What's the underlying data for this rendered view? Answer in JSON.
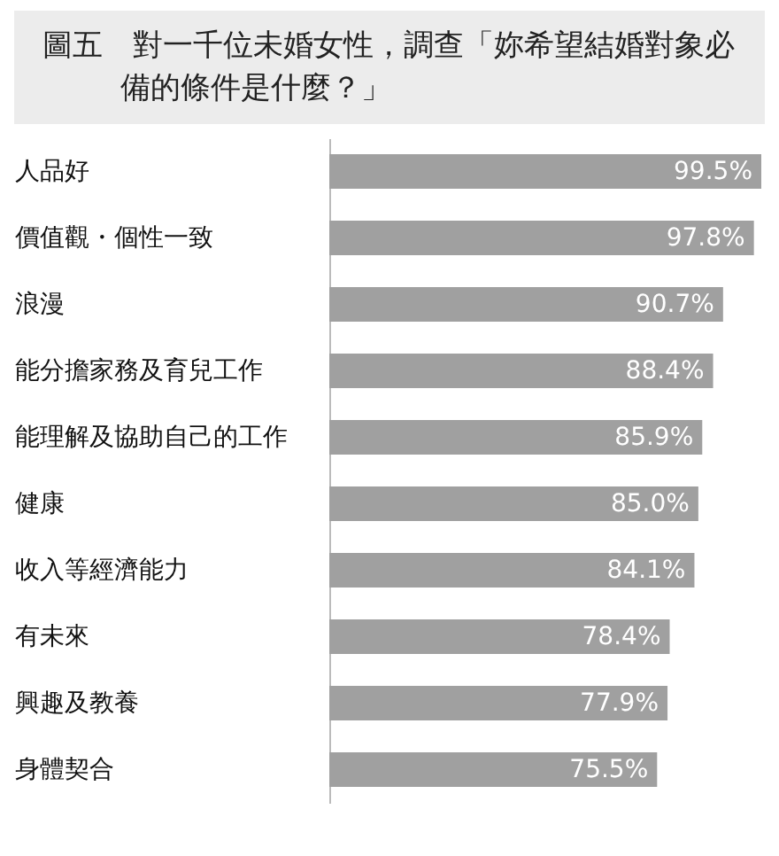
{
  "chart_data": {
    "type": "bar",
    "orientation": "horizontal",
    "title": "圖五　對一千位未婚女性，調查「妳希望結婚對象必備的條件是什麼？」",
    "categories": [
      "人品好",
      "價值觀・個性一致",
      "浪漫",
      "能分擔家務及育兒工作",
      "能理解及協助自己的工作",
      "健康",
      "收入等經濟能力",
      "有未來",
      "興趣及教養",
      "身體契合"
    ],
    "values": [
      99.5,
      97.8,
      90.7,
      88.4,
      85.9,
      85.0,
      84.1,
      78.4,
      77.9,
      75.5
    ],
    "value_labels": [
      "99.5%",
      "97.8%",
      "90.7%",
      "88.4%",
      "85.9%",
      "85.0%",
      "84.1%",
      "78.4%",
      "77.9%",
      "75.5%"
    ],
    "color": "#a0a0a0"
  }
}
